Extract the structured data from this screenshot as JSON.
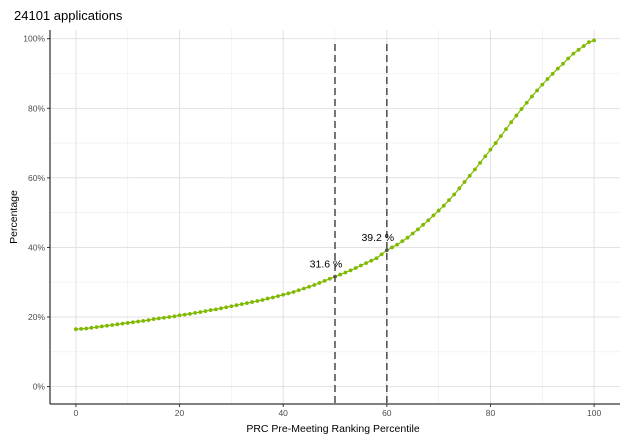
{
  "chart_data": {
    "type": "line",
    "title": "24101 applications",
    "xlabel": "PRC Pre-Meeting Ranking Percentile",
    "ylabel": "Percentage",
    "xlim": [
      -5,
      105
    ],
    "ylim": [
      -0.05,
      1.025
    ],
    "x_ticks": [
      0,
      20,
      40,
      60,
      80,
      100
    ],
    "x_tick_labels": [
      "0",
      "20",
      "40",
      "60",
      "80",
      "100"
    ],
    "y_ticks": [
      0,
      0.2,
      0.4,
      0.6,
      0.8,
      1.0
    ],
    "y_tick_labels": [
      "0%",
      "20%",
      "40%",
      "60%",
      "80%",
      "100%"
    ],
    "grid": true,
    "legend": "none",
    "series": [
      {
        "color": "#7fba00",
        "x": [
          0,
          1,
          2,
          3,
          4,
          5,
          6,
          7,
          8,
          9,
          10,
          11,
          12,
          13,
          14,
          15,
          16,
          17,
          18,
          19,
          20,
          21,
          22,
          23,
          24,
          25,
          26,
          27,
          28,
          29,
          30,
          31,
          32,
          33,
          34,
          35,
          36,
          37,
          38,
          39,
          40,
          41,
          42,
          43,
          44,
          45,
          46,
          47,
          48,
          49,
          50,
          51,
          52,
          53,
          54,
          55,
          56,
          57,
          58,
          59,
          60,
          61,
          62,
          63,
          64,
          65,
          66,
          67,
          68,
          69,
          70,
          71,
          72,
          73,
          74,
          75,
          76,
          77,
          78,
          79,
          80,
          81,
          82,
          83,
          84,
          85,
          86,
          87,
          88,
          89,
          90,
          91,
          92,
          93,
          94,
          95,
          96,
          97,
          98,
          99,
          100
        ],
        "y": [
          0.165,
          0.166,
          0.167,
          0.169,
          0.171,
          0.173,
          0.175,
          0.177,
          0.179,
          0.181,
          0.183,
          0.185,
          0.187,
          0.189,
          0.191,
          0.194,
          0.196,
          0.198,
          0.2,
          0.202,
          0.205,
          0.207,
          0.209,
          0.212,
          0.214,
          0.217,
          0.22,
          0.222,
          0.225,
          0.228,
          0.231,
          0.234,
          0.237,
          0.24,
          0.243,
          0.246,
          0.249,
          0.253,
          0.256,
          0.26,
          0.264,
          0.268,
          0.272,
          0.277,
          0.282,
          0.287,
          0.292,
          0.298,
          0.304,
          0.31,
          0.316,
          0.322,
          0.328,
          0.334,
          0.341,
          0.348,
          0.355,
          0.362,
          0.369,
          0.38,
          0.392,
          0.4,
          0.408,
          0.418,
          0.428,
          0.44,
          0.452,
          0.465,
          0.478,
          0.492,
          0.506,
          0.52,
          0.536,
          0.552,
          0.57,
          0.588,
          0.606,
          0.624,
          0.643,
          0.662,
          0.681,
          0.7,
          0.72,
          0.74,
          0.76,
          0.779,
          0.798,
          0.816,
          0.834,
          0.851,
          0.868,
          0.884,
          0.899,
          0.914,
          0.928,
          0.943,
          0.957,
          0.968,
          0.979,
          0.99,
          0.995
        ]
      }
    ],
    "vlines": [
      50,
      60
    ],
    "annotations": [
      {
        "x": 50,
        "y": 0.316,
        "text": "31.6 %"
      },
      {
        "x": 60,
        "y": 0.392,
        "text": "39.2 %"
      }
    ]
  }
}
